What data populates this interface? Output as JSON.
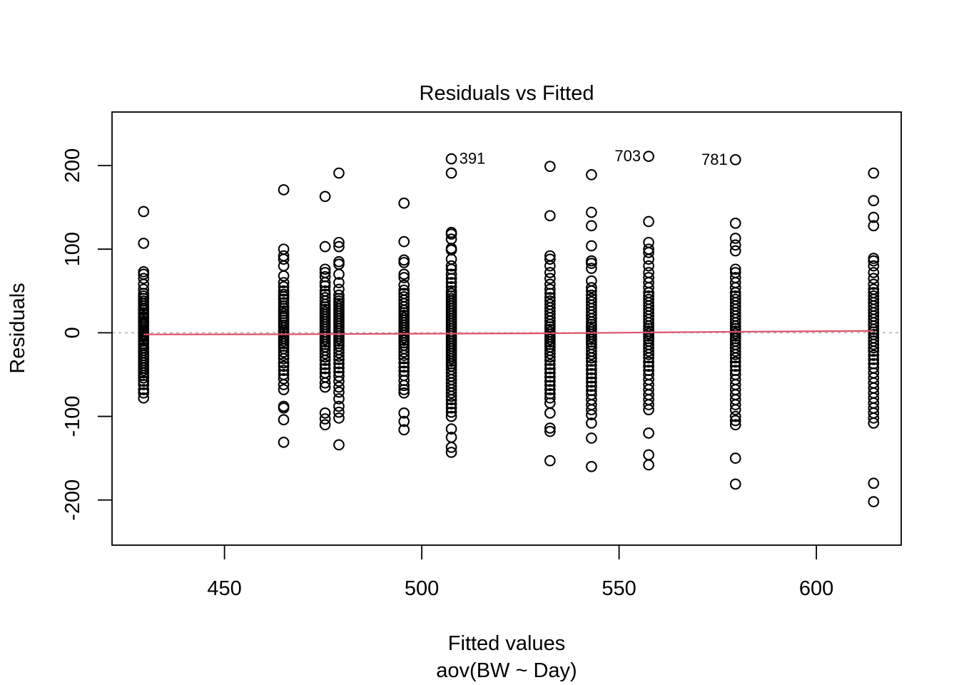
{
  "chart_data": {
    "type": "scatter",
    "title": "Residuals vs Fitted",
    "xlabel": "Fitted values",
    "xsublabel": "aov(BW ~ Day)",
    "ylabel": "Residuals",
    "xlim": [
      421.5,
      621.5
    ],
    "ylim": [
      -254,
      264
    ],
    "xticks": [
      450,
      500,
      550,
      600
    ],
    "xticklabels": [
      "450",
      "500",
      "550",
      "600"
    ],
    "yticks": [
      -200,
      -100,
      0,
      100,
      200
    ],
    "yticklabels": [
      "-200",
      "-100",
      "0",
      "100",
      "200"
    ],
    "grid": false,
    "legend": "none",
    "zero_line": {
      "y": 0,
      "style": "dashed",
      "color": "#b3b3b3"
    },
    "smoother": {
      "color": "#df536b",
      "x": [
        429.5,
        465.0,
        475.5,
        479.0,
        495.5,
        507.5,
        532.5,
        543.0,
        557.5,
        579.5,
        614.5
      ],
      "y": [
        -2,
        -1.8,
        -1.6,
        -1.5,
        -1.2,
        -1.0,
        -0.6,
        -0.2,
        0.4,
        1.2,
        2.2
      ]
    },
    "groups": [
      {
        "x": 429.5,
        "residuals": [
          145,
          107,
          73,
          70,
          65,
          58,
          52,
          47,
          44,
          41,
          38,
          35,
          32,
          29,
          27,
          24,
          22,
          19,
          17,
          14,
          12,
          10,
          8,
          5,
          3,
          1,
          -1,
          -3,
          -5,
          -8,
          -10,
          -13,
          -15,
          -18,
          -21,
          -24,
          -27,
          -30,
          -33,
          -36,
          -39,
          -42,
          -45,
          -48,
          -51,
          -54,
          -58,
          -62,
          -68,
          -72,
          -78
        ]
      },
      {
        "x": 465.0,
        "residuals": [
          171,
          100,
          92,
          88,
          80,
          68,
          60,
          55,
          50,
          46,
          43,
          40,
          36,
          32,
          29,
          26,
          23,
          20,
          18,
          15,
          12,
          9,
          6,
          3,
          1,
          -1,
          -4,
          -7,
          -10,
          -13,
          -16,
          -19,
          -23,
          -27,
          -31,
          -36,
          -40,
          -45,
          -50,
          -55,
          -62,
          -68,
          -88,
          -90,
          -104,
          -131
        ]
      },
      {
        "x": 475.5,
        "residuals": [
          163,
          103,
          76,
          72,
          67,
          60,
          56,
          50,
          46,
          42,
          38,
          34,
          31,
          28,
          25,
          22,
          19,
          16,
          13,
          10,
          7,
          4,
          1,
          -2,
          -5,
          -8,
          -11,
          -14,
          -17,
          -21,
          -25,
          -29,
          -33,
          -38,
          -43,
          -48,
          -53,
          -60,
          -65,
          -96,
          -103,
          -110
        ]
      },
      {
        "x": 479.0,
        "residuals": [
          191,
          108,
          103,
          85,
          82,
          70,
          60,
          52,
          45,
          41,
          38,
          35,
          32,
          29,
          26,
          23,
          20,
          17,
          14,
          11,
          8,
          5,
          2,
          -1,
          -4,
          -7,
          -10,
          -13,
          -16,
          -20,
          -24,
          -28,
          -32,
          -37,
          -42,
          -47,
          -52,
          -58,
          -65,
          -71,
          -79,
          -88,
          -95,
          -102,
          -134
        ]
      },
      {
        "x": 495.5,
        "residuals": [
          155,
          109,
          87,
          84,
          70,
          66,
          57,
          51,
          47,
          43,
          39,
          35,
          31,
          27,
          24,
          21,
          18,
          15,
          12,
          9,
          6,
          3,
          0,
          -3,
          -6,
          -9,
          -12,
          -15,
          -19,
          -23,
          -27,
          -31,
          -36,
          -41,
          -46,
          -51,
          -57,
          -63,
          -68,
          -72,
          -96,
          -106,
          -116
        ]
      },
      {
        "x": 507.5,
        "residuals": [
          208,
          191,
          120,
          118,
          112,
          101,
          99,
          88,
          80,
          76,
          70,
          65,
          60,
          55,
          50,
          47,
          44,
          41,
          38,
          35,
          32,
          29,
          26,
          23,
          20,
          17,
          14,
          11,
          8,
          5,
          2,
          -1,
          -4,
          -7,
          -10,
          -13,
          -16,
          -19,
          -22,
          -25,
          -28,
          -31,
          -34,
          -37,
          -40,
          -44,
          -48,
          -52,
          -56,
          -60,
          -64,
          -68,
          -72,
          -76,
          -80,
          -85,
          -90,
          -95,
          -100,
          -115,
          -125,
          -137,
          -143
        ]
      },
      {
        "x": 532.5,
        "residuals": [
          199,
          140,
          92,
          88,
          80,
          72,
          65,
          58,
          52,
          47,
          42,
          38,
          34,
          30,
          26,
          22,
          18,
          14,
          10,
          7,
          4,
          1,
          -2,
          -5,
          -8,
          -11,
          -14,
          -17,
          -21,
          -25,
          -29,
          -33,
          -38,
          -43,
          -48,
          -53,
          -58,
          -63,
          -68,
          -73,
          -78,
          -84,
          -96,
          -114,
          -118,
          -153
        ]
      },
      {
        "x": 543.0,
        "residuals": [
          189,
          144,
          128,
          104,
          86,
          83,
          77,
          62,
          54,
          50,
          45,
          41,
          37,
          33,
          29,
          25,
          21,
          17,
          13,
          10,
          7,
          4,
          1,
          -2,
          -5,
          -8,
          -11,
          -14,
          -18,
          -22,
          -26,
          -30,
          -34,
          -39,
          -44,
          -49,
          -54,
          -59,
          -64,
          -69,
          -74,
          -80,
          -86,
          -92,
          -98,
          -108,
          -126,
          -160
        ]
      },
      {
        "x": 557.5,
        "residuals": [
          211,
          133,
          108,
          100,
          96,
          88,
          80,
          72,
          66,
          60,
          54,
          48,
          44,
          40,
          36,
          32,
          28,
          24,
          20,
          16,
          12,
          8,
          5,
          2,
          -1,
          -4,
          -7,
          -10,
          -14,
          -18,
          -22,
          -26,
          -30,
          -35,
          -40,
          -45,
          -50,
          -56,
          -62,
          -68,
          -74,
          -80,
          -86,
          -92,
          -120,
          -146,
          -158
        ]
      },
      {
        "x": 579.5,
        "residuals": [
          207,
          131,
          113,
          105,
          98,
          76,
          72,
          66,
          60,
          54,
          48,
          44,
          40,
          36,
          32,
          28,
          24,
          20,
          16,
          12,
          8,
          5,
          2,
          -1,
          -4,
          -7,
          -10,
          -14,
          -18,
          -22,
          -26,
          -30,
          -35,
          -40,
          -45,
          -50,
          -56,
          -62,
          -68,
          -74,
          -80,
          -86,
          -92,
          -100,
          -105,
          -110,
          -150,
          -181
        ]
      },
      {
        "x": 614.5,
        "residuals": [
          191,
          158,
          138,
          128,
          89,
          86,
          80,
          72,
          65,
          58,
          52,
          48,
          44,
          40,
          36,
          32,
          28,
          24,
          20,
          16,
          12,
          8,
          4,
          1,
          -2,
          -6,
          -10,
          -14,
          -18,
          -22,
          -27,
          -32,
          -37,
          -42,
          -48,
          -54,
          -60,
          -66,
          -72,
          -78,
          -84,
          -90,
          -96,
          -102,
          -108,
          -180,
          -202
        ]
      }
    ],
    "annotations": [
      {
        "text": "391",
        "x": 507.5,
        "y": 208,
        "side": "right"
      },
      {
        "text": "703",
        "x": 557.5,
        "y": 211,
        "side": "left"
      },
      {
        "text": "781",
        "x": 579.5,
        "y": 207,
        "side": "left"
      }
    ]
  }
}
